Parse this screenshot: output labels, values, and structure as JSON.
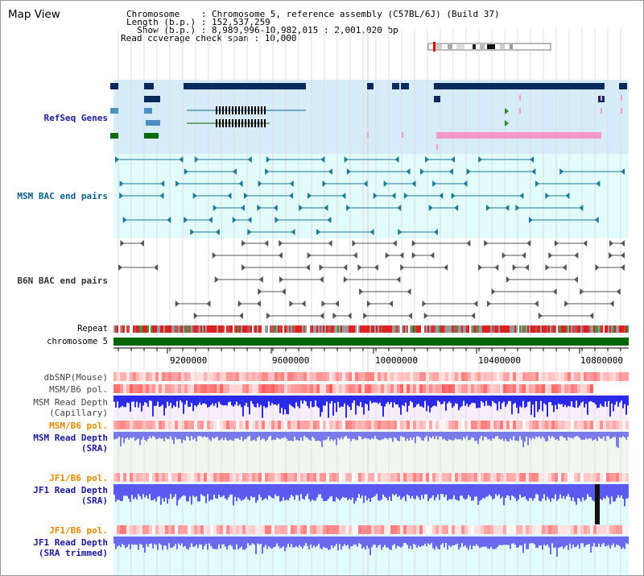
{
  "header": {
    "title": "Map View",
    "info_lines": [
      "Chromosome    : Chromosome 5, reference assembly (C57BL/6J) (Build 37)",
      "Length (b.p.) : 152,537,259",
      "  Show (b.p.) : 8,980,996-10,982,015 : 2,001,020 bp",
      "Read coverage check span : 10,000"
    ]
  },
  "tracks": {
    "refseq": {
      "label": "RefSeq Genes",
      "color": "#1a1a99"
    },
    "msm_bac": {
      "label": "MSM BAC end pairs",
      "color": "#0b5f8a"
    },
    "b6n_bac": {
      "label": "B6N BAC end pairs",
      "color": "#333333"
    },
    "repeat": {
      "label": "Repeat"
    },
    "chromosome": {
      "label": "chromosome 5"
    },
    "dbsnp": {
      "label": "dbSNP(Mouse)"
    },
    "msm_b6_pol_1": {
      "label": "MSM/B6 pol."
    },
    "msm_depth_cap": {
      "label_line1": "MSM Read Depth",
      "label_line2": "(Capillary)"
    },
    "msm_b6_pol_2": {
      "label": "MSM/B6 pol.",
      "color": "#e08800"
    },
    "msm_depth_sra": {
      "label_line1": "MSM Read Depth",
      "label_line2": "(SRA)",
      "color": "#1a1a99"
    },
    "jf1_b6_pol_1": {
      "label": "JF1/B6 pol.",
      "color": "#e08800"
    },
    "jf1_depth_sra": {
      "label_line1": "JF1 Read Depth",
      "label_line2": "(SRA)",
      "color": "#1a1a99"
    },
    "jf1_b6_pol_2": {
      "label": "JF1/B6 pol.",
      "color": "#e08800"
    },
    "jf1_depth_trim": {
      "label_line1": "JF1 Read Depth",
      "label_line2": "(SRA trimmed)",
      "color": "#1a1a99"
    }
  },
  "axis": {
    "ticks": [
      "9200000",
      "9600000",
      "10000000",
      "10400000",
      "10800000"
    ]
  },
  "colors": {
    "refseq_bg": "#d6ecf8",
    "msm_bg": "#e2fbfb",
    "gene_navy": "#0a2a5e",
    "gene_light": "#4a90c0",
    "gene_green": "#0a6a0a",
    "gene_pink": "#f59ac8",
    "chromosome_green": "#006400"
  }
}
